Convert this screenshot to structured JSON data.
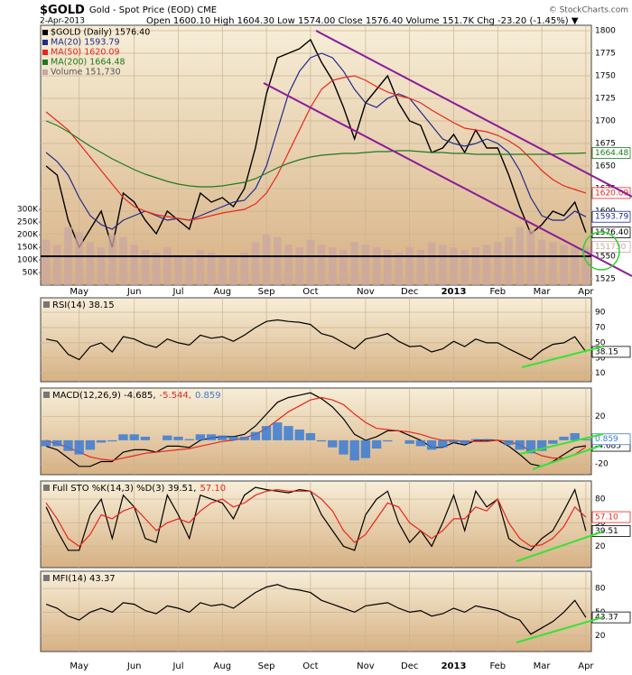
{
  "chart_data": [
    {
      "type": "line",
      "title": "$GOLD",
      "subtitle": "Gold - Spot Price (EOD) CME",
      "date": "2-Apr-2013",
      "quote": "Open 1600.10 High 1604.30 Low 1574.00 Close 1576.40 Volume 151.7K Chg -23.20 (-1.45%) ▼",
      "credit": "© StockCharts.com",
      "categories": [
        null,
        null,
        null,
        "May",
        null,
        null,
        null,
        null,
        "Jun",
        null,
        null,
        null,
        "Jul",
        null,
        null,
        null,
        "Aug",
        null,
        null,
        null,
        "Sep",
        null,
        null,
        null,
        "Oct",
        null,
        null,
        null,
        null,
        "Nov",
        null,
        null,
        null,
        "Dec",
        null,
        null,
        null,
        "2013",
        null,
        null,
        null,
        "Feb",
        null,
        null,
        null,
        "Mar",
        null,
        null,
        null,
        "Apr"
      ],
      "ylim": [
        1518,
        1806
      ],
      "yticks": [
        1525,
        1550,
        1575,
        1600,
        1625,
        1650,
        1675,
        1700,
        1725,
        1750,
        1775,
        1800
      ],
      "grid": true,
      "series": [
        {
          "name": "$GOLD (Daily) 1576.40",
          "color": "#000000",
          "tag": "1576.40",
          "values": [
            1650,
            1640,
            1590,
            1560,
            1580,
            1600,
            1560,
            1620,
            1610,
            1590,
            1575,
            1600,
            1590,
            1580,
            1620,
            1610,
            1615,
            1605,
            1625,
            1670,
            1730,
            1770,
            1775,
            1780,
            1790,
            1765,
            1745,
            1715,
            1680,
            1720,
            1735,
            1750,
            1720,
            1700,
            1695,
            1665,
            1670,
            1685,
            1665,
            1690,
            1670,
            1670,
            1640,
            1605,
            1575,
            1585,
            1600,
            1595,
            1610,
            1576.4
          ]
        },
        {
          "name": "MA(20) 1593.79",
          "color": "#1f2a8c",
          "tag": "1593.79",
          "values": [
            1665,
            1655,
            1640,
            1615,
            1595,
            1585,
            1580,
            1590,
            1595,
            1600,
            1595,
            1590,
            1592,
            1590,
            1595,
            1600,
            1605,
            1610,
            1612,
            1625,
            1650,
            1690,
            1730,
            1755,
            1770,
            1775,
            1770,
            1755,
            1735,
            1720,
            1715,
            1725,
            1730,
            1725,
            1710,
            1695,
            1680,
            1675,
            1672,
            1675,
            1680,
            1675,
            1665,
            1645,
            1615,
            1595,
            1590,
            1590,
            1600,
            1593.79
          ]
        },
        {
          "name": "MA(50) 1620.09",
          "color": "#e8261c",
          "tag": "1620.09",
          "values": [
            1710,
            1700,
            1690,
            1675,
            1660,
            1645,
            1630,
            1615,
            1605,
            1600,
            1596,
            1594,
            1592,
            1590,
            1592,
            1595,
            1598,
            1600,
            1602,
            1608,
            1620,
            1640,
            1665,
            1690,
            1715,
            1735,
            1745,
            1748,
            1750,
            1745,
            1738,
            1732,
            1728,
            1725,
            1720,
            1712,
            1705,
            1698,
            1692,
            1690,
            1688,
            1684,
            1678,
            1670,
            1658,
            1645,
            1635,
            1628,
            1624,
            1620.09
          ]
        },
        {
          "name": "MA(200) 1664.48",
          "color": "#1e7a1e",
          "tag": "1664.48",
          "values": [
            1700,
            1695,
            1688,
            1680,
            1672,
            1665,
            1658,
            1652,
            1646,
            1641,
            1637,
            1633,
            1630,
            1628,
            1627,
            1627,
            1628,
            1630,
            1632,
            1636,
            1642,
            1648,
            1653,
            1657,
            1660,
            1662,
            1663,
            1664,
            1664,
            1665,
            1666,
            1666,
            1667,
            1667,
            1666,
            1665,
            1665,
            1664,
            1664,
            1663,
            1663,
            1663,
            1663,
            1663,
            1663,
            1663,
            1663,
            1664,
            1664,
            1664.48
          ]
        }
      ]
    },
    {
      "type": "bar",
      "ylim": [
        0,
        1030000
      ],
      "yticks": [
        {
          "value": 50000,
          "label": "50K"
        },
        {
          "value": 100000,
          "label": "100K"
        },
        {
          "value": 150000,
          "label": "150K"
        },
        {
          "value": 200000,
          "label": "200K"
        },
        {
          "value": 250000,
          "label": "250K"
        },
        {
          "value": 300000,
          "label": "300K"
        }
      ],
      "series": [
        {
          "name": "Volume 151,730",
          "color": "#c9a7a2",
          "tag": "151730",
          "values": [
            180000,
            160000,
            230000,
            210000,
            170000,
            150000,
            200000,
            190000,
            160000,
            140000,
            130000,
            150000,
            120000,
            110000,
            140000,
            130000,
            120000,
            110000,
            130000,
            170000,
            200000,
            190000,
            160000,
            150000,
            180000,
            160000,
            150000,
            140000,
            170000,
            160000,
            150000,
            140000,
            130000,
            150000,
            140000,
            170000,
            160000,
            150000,
            140000,
            150000,
            160000,
            170000,
            190000,
            230000,
            220000,
            180000,
            170000,
            160000,
            150000,
            151730
          ]
        }
      ]
    },
    {
      "type": "line",
      "ylim": [
        -1,
        109
      ],
      "yticks": [
        10,
        30,
        50,
        70,
        90
      ],
      "grid": true,
      "series": [
        {
          "name": "RSI(14) 38.15",
          "color": "#000000",
          "tag": "38.15",
          "values": [
            55,
            52,
            35,
            28,
            45,
            50,
            38,
            58,
            55,
            48,
            44,
            55,
            50,
            47,
            60,
            56,
            58,
            52,
            60,
            70,
            78,
            80,
            78,
            77,
            74,
            62,
            58,
            50,
            42,
            55,
            58,
            62,
            52,
            45,
            46,
            38,
            42,
            52,
            45,
            55,
            50,
            50,
            42,
            35,
            28,
            40,
            48,
            50,
            58,
            38.15
          ]
        }
      ]
    },
    {
      "type": "line",
      "ylim": [
        -29,
        44
      ],
      "yticks": [
        -20,
        20
      ],
      "grid": true,
      "series": [
        {
          "name": "MACD(12,26,9) -4.685,",
          "color": "#000000",
          "tag": "-4.685",
          "values": [
            -5,
            -8,
            -15,
            -22,
            -22,
            -18,
            -18,
            -10,
            -8,
            -8,
            -10,
            -5,
            -5,
            -6,
            0,
            2,
            3,
            3,
            5,
            12,
            22,
            32,
            36,
            38,
            40,
            35,
            28,
            18,
            5,
            0,
            3,
            8,
            8,
            4,
            0,
            -6,
            -6,
            -2,
            -4,
            0,
            0,
            0,
            -5,
            -12,
            -20,
            -22,
            -18,
            -12,
            -6,
            -4.685
          ]
        },
        {
          "name": "-5.544,",
          "color": "#e8261c",
          "values": [
            0,
            -3,
            -6,
            -10,
            -14,
            -16,
            -17,
            -15,
            -13,
            -11,
            -10,
            -9,
            -8,
            -7,
            -5,
            -3,
            -1,
            0,
            2,
            5,
            10,
            17,
            24,
            29,
            34,
            36,
            34,
            30,
            22,
            15,
            10,
            9,
            8,
            7,
            5,
            2,
            0,
            0,
            -1,
            -1,
            -1,
            0,
            -1,
            -4,
            -9,
            -13,
            -15,
            -15,
            -12,
            -5.544
          ]
        },
        {
          "name": "0.859",
          "color": "#3a7bd5",
          "type": "bar",
          "tag": "0.859",
          "values": [
            -5,
            -5,
            -9,
            -12,
            -8,
            -2,
            -1,
            5,
            5,
            3,
            0,
            4,
            3,
            1,
            5,
            5,
            4,
            3,
            3,
            7,
            12,
            15,
            12,
            9,
            6,
            -1,
            -6,
            -12,
            -17,
            -15,
            -7,
            -1,
            0,
            -3,
            -5,
            -8,
            -6,
            -2,
            -3,
            1,
            1,
            0,
            -4,
            -8,
            -11,
            -9,
            -3,
            3,
            6,
            0.859
          ]
        }
      ]
    },
    {
      "type": "line",
      "ylim": [
        -7,
        103
      ],
      "yticks": [
        20,
        50,
        80
      ],
      "grid": true,
      "series": [
        {
          "name": "Full STO %K(14,3) %D(3) 39.51,",
          "color": "#000000",
          "tag": "39.51",
          "values": [
            70,
            40,
            15,
            15,
            60,
            80,
            30,
            85,
            70,
            30,
            25,
            85,
            60,
            30,
            85,
            80,
            75,
            55,
            85,
            95,
            92,
            90,
            88,
            92,
            90,
            60,
            40,
            20,
            15,
            60,
            80,
            90,
            50,
            25,
            40,
            20,
            50,
            85,
            40,
            90,
            70,
            80,
            30,
            20,
            15,
            30,
            40,
            65,
            92,
            39.51
          ]
        },
        {
          "name": "57.10",
          "color": "#e8261c",
          "tag": "57.10",
          "values": [
            75,
            55,
            30,
            20,
            35,
            60,
            55,
            65,
            70,
            55,
            40,
            50,
            55,
            50,
            65,
            75,
            80,
            70,
            75,
            85,
            90,
            92,
            90,
            90,
            90,
            80,
            65,
            40,
            25,
            35,
            55,
            75,
            70,
            50,
            40,
            30,
            40,
            55,
            55,
            70,
            65,
            80,
            50,
            30,
            20,
            22,
            30,
            45,
            70,
            57.1
          ]
        }
      ]
    },
    {
      "type": "line",
      "ylim": [
        0,
        102
      ],
      "yticks": [
        20,
        50,
        80
      ],
      "grid": true,
      "series": [
        {
          "name": "MFI(14) 43.37",
          "color": "#000000",
          "tag": "43.37",
          "values": [
            60,
            55,
            45,
            40,
            50,
            55,
            50,
            62,
            60,
            52,
            48,
            58,
            55,
            50,
            62,
            58,
            60,
            55,
            65,
            75,
            82,
            85,
            80,
            78,
            75,
            65,
            60,
            55,
            50,
            58,
            60,
            62,
            55,
            50,
            52,
            45,
            48,
            55,
            50,
            58,
            55,
            52,
            45,
            40,
            22,
            30,
            38,
            50,
            65,
            43.37
          ]
        }
      ]
    }
  ]
}
